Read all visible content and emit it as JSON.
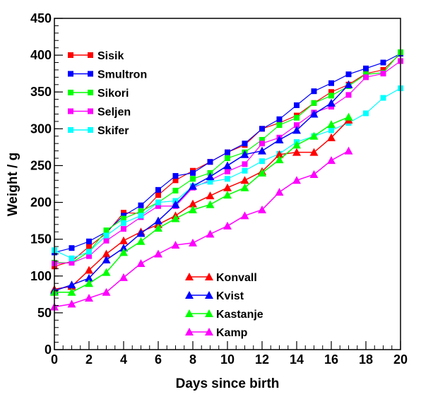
{
  "chart_data": {
    "type": "line",
    "xlabel": "Days since birth",
    "ylabel": "Weight / g",
    "xlim": [
      0,
      20
    ],
    "ylim": [
      0,
      450
    ],
    "x_ticks": [
      "0",
      "2",
      "4",
      "6",
      "8",
      "10",
      "12",
      "14",
      "16",
      "18",
      "20"
    ],
    "y_ticks": [
      "0",
      "50",
      "100",
      "150",
      "200",
      "250",
      "300",
      "350",
      "400",
      "450"
    ],
    "grid": false,
    "legends": [
      {
        "placement": "top-left",
        "series": [
          "Sisik",
          "Smultron",
          "Sikori",
          "Seljen",
          "Skifer"
        ]
      },
      {
        "placement": "bottom-center",
        "series": [
          "Konvall",
          "Kvist",
          "Kastanje",
          "Kamp"
        ]
      }
    ],
    "series": [
      {
        "name": "Sisik",
        "color": "#ff0000",
        "marker": "square",
        "x": [
          0,
          1,
          2,
          3,
          4,
          5,
          6,
          7,
          8,
          9,
          10,
          11,
          12,
          13,
          14,
          15,
          16,
          17,
          18,
          19,
          20
        ],
        "y": [
          113,
          120,
          140,
          158,
          186,
          185,
          210,
          230,
          243,
          255,
          268,
          278,
          300,
          308,
          318,
          335,
          350,
          360,
          375,
          380,
          402
        ]
      },
      {
        "name": "Smultron",
        "color": "#0000ff",
        "marker": "square",
        "x": [
          0,
          1,
          2,
          3,
          4,
          5,
          6,
          7,
          8,
          9,
          10,
          11,
          12,
          13,
          14,
          15,
          16,
          17,
          18,
          19,
          20
        ],
        "y": [
          132,
          138,
          147,
          160,
          182,
          196,
          217,
          236,
          240,
          255,
          268,
          280,
          300,
          313,
          332,
          351,
          362,
          374,
          382,
          390,
          402
        ]
      },
      {
        "name": "Sikori",
        "color": "#00ff00",
        "marker": "square",
        "x": [
          0,
          1,
          2,
          3,
          4,
          5,
          6,
          7,
          8,
          9,
          10,
          11,
          12,
          13,
          14,
          15,
          16,
          17,
          18,
          19,
          20
        ],
        "y": [
          118,
          118,
          133,
          162,
          178,
          188,
          200,
          216,
          232,
          240,
          260,
          268,
          285,
          305,
          315,
          335,
          345,
          358,
          374,
          376,
          404
        ]
      },
      {
        "name": "Seljen",
        "color": "#ff00ff",
        "marker": "square",
        "x": [
          0,
          1,
          2,
          3,
          4,
          5,
          6,
          7,
          8,
          9,
          10,
          11,
          12,
          13,
          14,
          15,
          16,
          17,
          18,
          19,
          20
        ],
        "y": [
          117,
          118,
          127,
          148,
          164,
          180,
          195,
          195,
          220,
          230,
          242,
          252,
          280,
          288,
          305,
          322,
          330,
          346,
          370,
          375,
          392
        ]
      },
      {
        "name": "Skifer",
        "color": "#00ffff",
        "marker": "square",
        "x": [
          0,
          1,
          2,
          3,
          4,
          5,
          6,
          7,
          8,
          9,
          10,
          11,
          12,
          13,
          14,
          15,
          16,
          17,
          18,
          19,
          20
        ],
        "y": [
          135,
          124,
          133,
          155,
          172,
          182,
          200,
          202,
          222,
          228,
          232,
          243,
          256,
          266,
          282,
          290,
          298,
          308,
          321,
          342,
          355
        ]
      },
      {
        "name": "Konvall",
        "color": "#ff0000",
        "marker": "triangle",
        "x": [
          0,
          1,
          2,
          3,
          4,
          5,
          6,
          7,
          8,
          9,
          10,
          11,
          12,
          13,
          14,
          15,
          16,
          17
        ],
        "y": [
          82,
          86,
          108,
          130,
          148,
          160,
          170,
          182,
          198,
          209,
          220,
          230,
          242,
          265,
          268,
          268,
          288,
          312
        ]
      },
      {
        "name": "Kvist",
        "color": "#0000ff",
        "marker": "triangle",
        "x": [
          0,
          1,
          2,
          3,
          4,
          5,
          6,
          7,
          8,
          9,
          10,
          11,
          12,
          13,
          14,
          15,
          16,
          17
        ],
        "y": [
          80,
          88,
          97,
          122,
          138,
          158,
          175,
          197,
          222,
          235,
          250,
          265,
          270,
          285,
          298,
          320,
          335,
          360
        ]
      },
      {
        "name": "Kastanje",
        "color": "#00ff00",
        "marker": "triangle",
        "x": [
          0,
          1,
          2,
          3,
          4,
          5,
          6,
          7,
          8,
          9,
          10,
          11,
          12,
          13,
          14,
          15,
          16,
          17
        ],
        "y": [
          78,
          78,
          90,
          105,
          132,
          147,
          165,
          178,
          190,
          197,
          210,
          220,
          240,
          258,
          278,
          290,
          306,
          316
        ]
      },
      {
        "name": "Kamp",
        "color": "#ff00ff",
        "marker": "triangle",
        "x": [
          0,
          1,
          2,
          3,
          4,
          5,
          6,
          7,
          8,
          9,
          10,
          11,
          12,
          13,
          14,
          15,
          16,
          17
        ],
        "y": [
          58,
          62,
          70,
          78,
          98,
          117,
          130,
          142,
          145,
          157,
          168,
          182,
          190,
          214,
          230,
          238,
          257,
          270
        ]
      }
    ]
  }
}
